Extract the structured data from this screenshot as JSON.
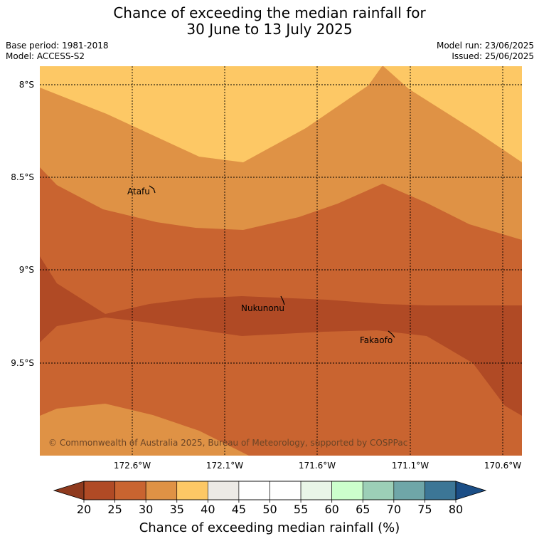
{
  "title": {
    "line1": "Chance of exceeding the median rainfall for",
    "line2": "30 June to 13 July 2025"
  },
  "meta": {
    "base_period": "Base period: 1981-2018",
    "model": "Model: ACCESS-S2",
    "model_run": "Model run: 23/06/2025",
    "issued": "Issued: 25/06/2025"
  },
  "map": {
    "lat_labels": [
      "8°S",
      "8.5°S",
      "9°S",
      "9.5°S"
    ],
    "lon_labels": [
      "172.6°W",
      "172.1°W",
      "171.6°W",
      "171.1°W",
      "170.6°W"
    ],
    "places": [
      "Atafu",
      "Nukunonu",
      "Fakaofo"
    ],
    "copyright": "© Commonwealth of Australia 2025, Bureau of Meteorology, supported by COSPPac"
  },
  "colorbar": {
    "ticks": [
      "20",
      "25",
      "30",
      "35",
      "40",
      "45",
      "50",
      "55",
      "60",
      "65",
      "70",
      "75",
      "80"
    ],
    "colors": [
      "#b04a25",
      "#c96430",
      "#df9245",
      "#fdc865",
      "#eceae6",
      "#ffffff",
      "#ffffff",
      "#e9f5e7",
      "#ccffcc",
      "#9ccfb7",
      "#6fa6a8",
      "#3c7696"
    ],
    "under_color": "#8f3a1e",
    "over_color": "#1b4e86",
    "label": "Chance of exceeding median rainfall (%)"
  }
}
